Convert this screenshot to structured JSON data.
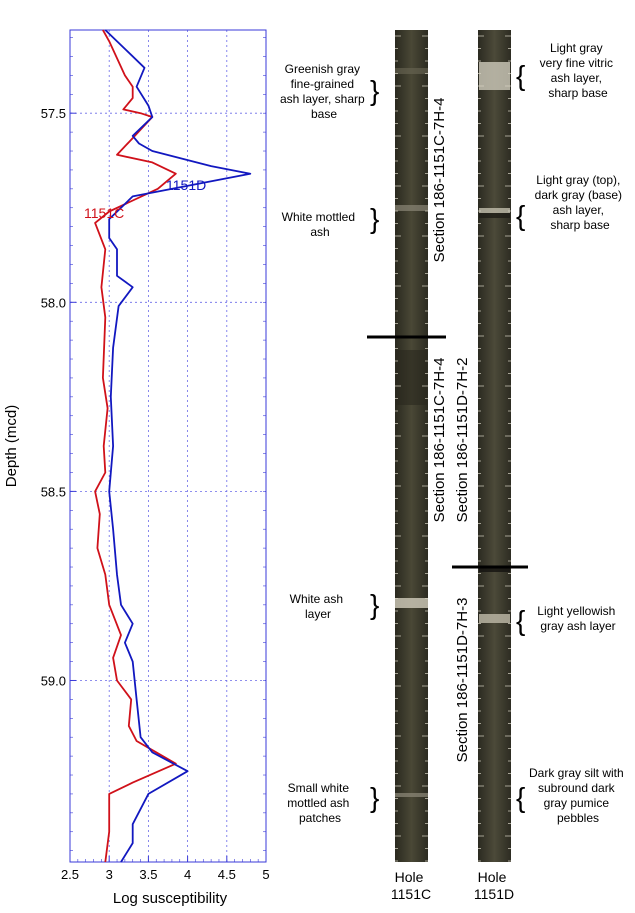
{
  "chart_data": {
    "type": "line",
    "xlabel": "Log susceptibility",
    "ylabel": "Depth (mcd)",
    "xlim": [
      2.5,
      5
    ],
    "ylim": [
      57.28,
      59.48
    ],
    "y_inverted": true,
    "x_ticks": [
      "2.5",
      "3",
      "3.5",
      "4",
      "4.5",
      "5"
    ],
    "y_ticks": [
      "57.5",
      "58.0",
      "58.5",
      "59.0"
    ],
    "grid": true,
    "series": [
      {
        "name": "1151C",
        "color": "#d0111a",
        "points": [
          [
            2.92,
            57.28
          ],
          [
            3.0,
            57.31
          ],
          [
            3.2,
            57.4
          ],
          [
            3.3,
            57.43
          ],
          [
            3.3,
            57.46
          ],
          [
            3.18,
            57.49
          ],
          [
            3.4,
            57.5
          ],
          [
            3.55,
            57.51
          ],
          [
            3.28,
            57.57
          ],
          [
            3.1,
            57.61
          ],
          [
            3.55,
            57.63
          ],
          [
            3.85,
            57.66
          ],
          [
            3.62,
            57.7
          ],
          [
            3.0,
            57.76
          ],
          [
            2.82,
            57.79
          ],
          [
            2.95,
            57.86
          ],
          [
            2.9,
            57.96
          ],
          [
            2.95,
            58.04
          ],
          [
            2.92,
            58.2
          ],
          [
            2.98,
            58.28
          ],
          [
            2.93,
            58.38
          ],
          [
            2.95,
            58.45
          ],
          [
            2.82,
            58.5
          ],
          [
            2.88,
            58.56
          ],
          [
            2.85,
            58.65
          ],
          [
            2.95,
            58.72
          ],
          [
            3.0,
            58.8
          ],
          [
            3.15,
            58.88
          ],
          [
            3.05,
            58.94
          ],
          [
            3.1,
            59.0
          ],
          [
            3.28,
            59.05
          ],
          [
            3.25,
            59.12
          ],
          [
            3.35,
            59.16
          ],
          [
            3.6,
            59.19
          ],
          [
            3.85,
            59.22
          ],
          [
            3.3,
            59.27
          ],
          [
            3.0,
            59.3
          ],
          [
            3.0,
            59.4
          ],
          [
            2.95,
            59.48
          ]
        ]
      },
      {
        "name": "1151D",
        "color": "#1218c0",
        "points": [
          [
            2.95,
            57.28
          ],
          [
            3.2,
            57.33
          ],
          [
            3.45,
            57.38
          ],
          [
            3.35,
            57.43
          ],
          [
            3.5,
            57.48
          ],
          [
            3.55,
            57.51
          ],
          [
            3.3,
            57.56
          ],
          [
            3.38,
            57.58
          ],
          [
            3.55,
            57.6
          ],
          [
            4.3,
            57.64
          ],
          [
            4.8,
            57.66
          ],
          [
            3.3,
            57.72
          ],
          [
            3.0,
            57.78
          ],
          [
            3.0,
            57.83
          ],
          [
            3.1,
            57.86
          ],
          [
            3.1,
            57.93
          ],
          [
            3.3,
            57.96
          ],
          [
            3.12,
            58.01
          ],
          [
            3.05,
            58.12
          ],
          [
            3.02,
            58.25
          ],
          [
            3.05,
            58.38
          ],
          [
            3.0,
            58.5
          ],
          [
            3.05,
            58.6
          ],
          [
            3.1,
            58.72
          ],
          [
            3.15,
            58.8
          ],
          [
            3.3,
            58.85
          ],
          [
            3.2,
            58.9
          ],
          [
            3.3,
            58.95
          ],
          [
            3.35,
            59.05
          ],
          [
            3.4,
            59.15
          ],
          [
            3.55,
            59.19
          ],
          [
            4.0,
            59.24
          ],
          [
            3.5,
            59.3
          ],
          [
            3.3,
            59.38
          ],
          [
            3.3,
            59.43
          ],
          [
            3.15,
            59.48
          ]
        ]
      }
    ]
  },
  "series_labels": {
    "c": "1151C",
    "d": "1151D"
  },
  "annotations": {
    "c_greenish": [
      "Greenish gray",
      "fine-grained",
      "ash layer, sharp",
      "base"
    ],
    "c_white_mottled": [
      "White mottled",
      "ash"
    ],
    "c_white_ash": [
      "White ash",
      "layer"
    ],
    "c_small_white": [
      "Small white",
      "mottled ash",
      "patches"
    ],
    "d_light_gray": [
      "Light gray",
      "very fine vitric",
      "ash layer,",
      "sharp base"
    ],
    "d_light_dark": [
      "Light gray (top),",
      "dark gray (base)",
      "ash layer,",
      "sharp base"
    ],
    "d_yellowish": [
      "Light yellowish",
      "gray ash layer"
    ],
    "d_dark_silt": [
      "Dark gray silt with",
      "subround dark",
      "gray pumice",
      "pebbles"
    ]
  },
  "sections": {
    "c_upper": "Section 186-1151C-7H-4",
    "c_lower": "Section 186-1151C-7H-4",
    "d_upper": "Section 186-1151D-7H-2",
    "d_lower": "Section 186-1151D-7H-3"
  },
  "holes": {
    "c": [
      "Hole",
      "1151C"
    ],
    "d": [
      "Hole",
      "1151D"
    ]
  },
  "colors": {
    "axis": "#3a3ad8",
    "grid": "#6a6ae8",
    "core": "#3b3a2c",
    "ash": "#c9c4b4"
  }
}
